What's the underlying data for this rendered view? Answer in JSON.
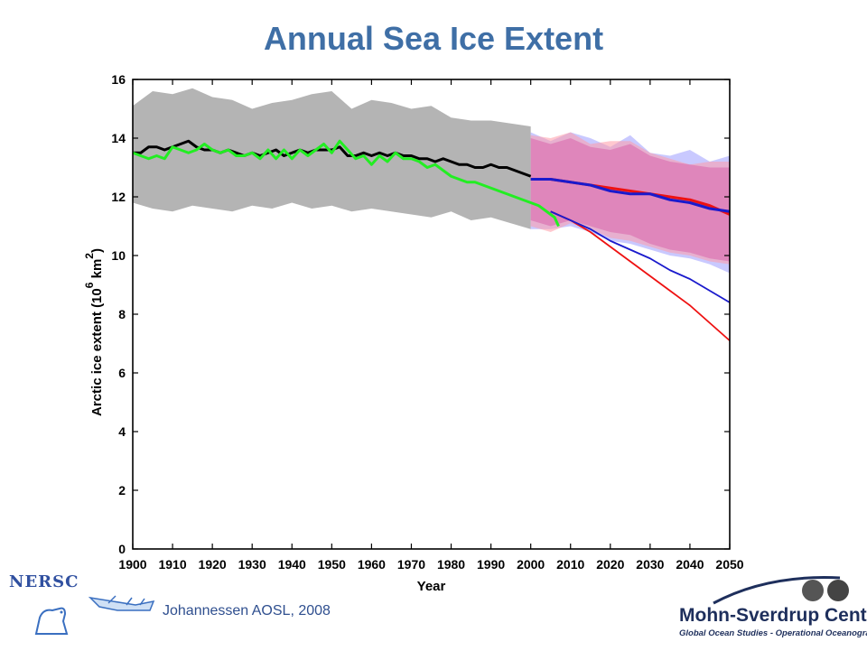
{
  "slide": {
    "title": "Annual Sea Ice Extent",
    "citation": "Johannessen AOSL, 2008",
    "logos": {
      "left_text": "NERSC",
      "right_name": "Mohn-Sverdrup Center",
      "right_subtitle": "Global Ocean Studies - Operational Oceanography"
    }
  },
  "colors": {
    "title": "#3f6fa6",
    "observed_band": "#b4b4b4",
    "model_band_pink": "#dc78b4",
    "observations": "#000000",
    "model_green": "#22ee22",
    "scenario_red": "#ee1111",
    "scenario_blue": "#1a1acc"
  },
  "chart_data": {
    "type": "line",
    "xlabel": "Year",
    "ylabel": "Arctic ice extent (10",
    "ylabel_exp": "6",
    "ylabel_unit": "km",
    "ylabel_unit_exp": "2",
    "ylabel_close": ")",
    "xlim": [
      1900,
      2050
    ],
    "ylim": [
      0,
      16
    ],
    "x_ticks": [
      1900,
      1910,
      1920,
      1930,
      1940,
      1950,
      1960,
      1970,
      1980,
      1990,
      2000,
      2010,
      2020,
      2030,
      2040,
      2050
    ],
    "y_ticks": [
      0,
      2,
      4,
      6,
      8,
      10,
      12,
      14,
      16
    ],
    "grid": false,
    "legend": "none",
    "bands": [
      {
        "color": "gray",
        "x": [
          1900,
          1905,
          1910,
          1915,
          1920,
          1925,
          1930,
          1935,
          1940,
          1945,
          1950,
          1955,
          1960,
          1965,
          1970,
          1975,
          1980,
          1985,
          1990,
          1995,
          2000
        ],
        "upper": [
          15.1,
          15.6,
          15.5,
          15.7,
          15.4,
          15.3,
          15.0,
          15.2,
          15.3,
          15.5,
          15.6,
          15.0,
          15.3,
          15.2,
          15.0,
          15.1,
          14.7,
          14.6,
          14.6,
          14.5,
          14.4
        ],
        "lower": [
          11.8,
          11.6,
          11.5,
          11.7,
          11.6,
          11.5,
          11.7,
          11.6,
          11.8,
          11.6,
          11.7,
          11.5,
          11.6,
          11.5,
          11.4,
          11.3,
          11.5,
          11.2,
          11.3,
          11.1,
          10.9
        ]
      },
      {
        "color": "blue",
        "x": [
          2000,
          2005,
          2010,
          2015,
          2020,
          2025,
          2030,
          2035,
          2040,
          2045,
          2050
        ],
        "upper": [
          14.2,
          13.9,
          14.2,
          14.0,
          13.7,
          14.1,
          13.5,
          13.4,
          13.6,
          13.2,
          13.4
        ],
        "lower": [
          10.9,
          10.9,
          11.0,
          10.8,
          10.5,
          10.4,
          10.2,
          10.0,
          9.9,
          9.7,
          9.4
        ]
      },
      {
        "color": "pink",
        "x": [
          2000,
          2005,
          2010,
          2015,
          2020,
          2025,
          2030,
          2035,
          2040,
          2045,
          2050
        ],
        "upper": [
          14.1,
          14.0,
          14.2,
          13.8,
          13.9,
          13.9,
          13.5,
          13.3,
          13.1,
          13.2,
          13.2
        ],
        "lower": [
          11.0,
          10.8,
          11.1,
          10.9,
          10.6,
          10.5,
          10.3,
          10.1,
          10.0,
          9.8,
          9.7
        ]
      },
      {
        "color": "magenta",
        "x": [
          2000,
          2005,
          2010,
          2015,
          2020,
          2025,
          2030,
          2035,
          2040,
          2045,
          2050
        ],
        "upper": [
          14.0,
          13.8,
          14.0,
          13.7,
          13.6,
          13.8,
          13.4,
          13.2,
          13.1,
          13.0,
          13.0
        ],
        "lower": [
          11.2,
          11.0,
          11.2,
          11.0,
          10.8,
          10.7,
          10.4,
          10.2,
          10.1,
          9.9,
          9.8
        ]
      }
    ],
    "series": [
      {
        "color": "black",
        "x": [
          1900,
          1902,
          1904,
          1906,
          1908,
          1910,
          1912,
          1914,
          1916,
          1918,
          1920,
          1922,
          1924,
          1926,
          1928,
          1930,
          1932,
          1934,
          1936,
          1938,
          1940,
          1942,
          1944,
          1946,
          1948,
          1950,
          1952,
          1954,
          1956,
          1958,
          1960,
          1962,
          1964,
          1966,
          1968,
          1970,
          1972,
          1974,
          1976,
          1978,
          1980,
          1982,
          1984,
          1986,
          1988,
          1990,
          1992,
          1994,
          1996,
          1998,
          2000
        ],
        "y": [
          13.5,
          13.5,
          13.7,
          13.7,
          13.6,
          13.7,
          13.8,
          13.9,
          13.7,
          13.6,
          13.6,
          13.5,
          13.6,
          13.5,
          13.4,
          13.5,
          13.4,
          13.5,
          13.6,
          13.4,
          13.5,
          13.6,
          13.5,
          13.6,
          13.6,
          13.6,
          13.7,
          13.4,
          13.4,
          13.5,
          13.4,
          13.5,
          13.4,
          13.5,
          13.4,
          13.4,
          13.3,
          13.3,
          13.2,
          13.3,
          13.2,
          13.1,
          13.1,
          13.0,
          13.0,
          13.1,
          13.0,
          13.0,
          12.9,
          12.8,
          12.7
        ]
      },
      {
        "color": "green",
        "x": [
          1900,
          1902,
          1904,
          1906,
          1908,
          1910,
          1912,
          1914,
          1916,
          1918,
          1920,
          1922,
          1924,
          1926,
          1928,
          1930,
          1932,
          1934,
          1936,
          1938,
          1940,
          1942,
          1944,
          1946,
          1948,
          1950,
          1952,
          1954,
          1956,
          1958,
          1960,
          1962,
          1964,
          1966,
          1968,
          1970,
          1972,
          1974,
          1976,
          1978,
          1980,
          1982,
          1984,
          1986,
          1988,
          1990,
          1992,
          1994,
          1996,
          1998,
          2000,
          2002,
          2004,
          2006,
          2007
        ],
        "y": [
          13.5,
          13.4,
          13.3,
          13.4,
          13.3,
          13.7,
          13.6,
          13.5,
          13.6,
          13.8,
          13.6,
          13.5,
          13.6,
          13.4,
          13.4,
          13.5,
          13.3,
          13.6,
          13.3,
          13.6,
          13.3,
          13.6,
          13.4,
          13.6,
          13.8,
          13.5,
          13.9,
          13.6,
          13.3,
          13.4,
          13.1,
          13.4,
          13.2,
          13.5,
          13.3,
          13.3,
          13.2,
          13.0,
          13.1,
          12.9,
          12.7,
          12.6,
          12.5,
          12.5,
          12.4,
          12.3,
          12.2,
          12.1,
          12.0,
          11.9,
          11.8,
          11.7,
          11.5,
          11.3,
          11.0
        ]
      },
      {
        "color": "red",
        "x": [
          2000,
          2005,
          2010,
          2015,
          2020,
          2025,
          2030,
          2035,
          2040,
          2045,
          2050
        ],
        "y": [
          12.6,
          12.6,
          12.5,
          12.4,
          12.3,
          12.2,
          12.1,
          12.0,
          11.9,
          11.7,
          11.4
        ]
      },
      {
        "color": "blue",
        "x": [
          2000,
          2005,
          2010,
          2015,
          2020,
          2025,
          2030,
          2035,
          2040,
          2045,
          2050
        ],
        "y": [
          12.6,
          12.6,
          12.5,
          12.4,
          12.2,
          12.1,
          12.1,
          11.9,
          11.8,
          11.6,
          11.5
        ]
      },
      {
        "color": "red",
        "x": [
          2005,
          2010,
          2015,
          2020,
          2025,
          2030,
          2035,
          2040,
          2045,
          2050
        ],
        "y": [
          11.5,
          11.2,
          10.8,
          10.3,
          9.8,
          9.3,
          8.8,
          8.3,
          7.7,
          7.1
        ]
      },
      {
        "color": "blue",
        "x": [
          2005,
          2010,
          2015,
          2020,
          2025,
          2030,
          2035,
          2040,
          2045,
          2050
        ],
        "y": [
          11.5,
          11.2,
          10.9,
          10.5,
          10.2,
          9.9,
          9.5,
          9.2,
          8.8,
          8.4
        ]
      }
    ]
  }
}
